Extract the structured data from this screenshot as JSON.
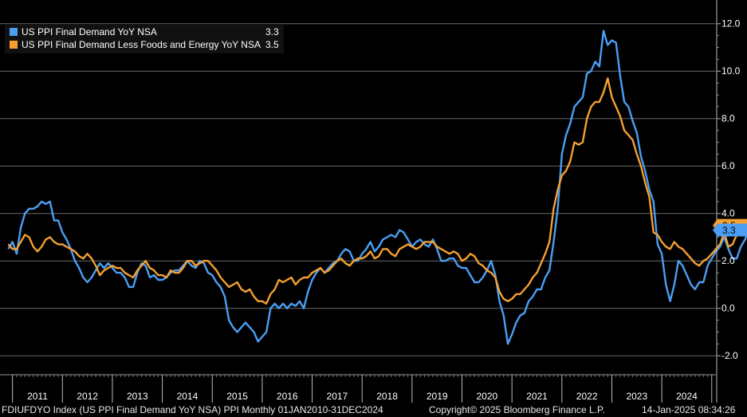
{
  "legend": [
    {
      "name": "US PPI Final Demand YoY NSA",
      "value": "3.3",
      "color": "#4a9ff5"
    },
    {
      "name": "US PPI Final Demand Less Foods and Energy YoY NSA",
      "value": "3.5",
      "color": "#f5a030"
    }
  ],
  "footer": {
    "left": "FDIUFDYO Index (US PPI Final Demand YoY NSA) PPI  Monthly 01JAN2010-31DEC2024",
    "center": "Copyright© 2025 Bloomberg Finance L.P.",
    "right": "14-Jan-2025 08:34:26"
  },
  "chart_data": {
    "type": "line",
    "x_start": "2010-12",
    "x_frequency": "monthly",
    "xlim": [
      "2010-10",
      "2025-02"
    ],
    "ylim": [
      -2.8,
      13.0
    ],
    "y_ticks": [
      "-2.0",
      "0.0",
      "2.0",
      "4.0",
      "6.0",
      "8.0",
      "10.0",
      "12.0"
    ],
    "x_tick_labels": [
      "2011",
      "2012",
      "2013",
      "2014",
      "2015",
      "2016",
      "2017",
      "2018",
      "2019",
      "2020",
      "2021",
      "2022",
      "2023",
      "2024"
    ],
    "grid": true,
    "axis_position": "right",
    "last_value_badges": [
      {
        "label": "3.3",
        "series": 0
      },
      {
        "label": "3.5",
        "series": 1
      }
    ],
    "series": [
      {
        "name": "US PPI Final Demand YoY NSA",
        "color": "#4a9ff5",
        "values": [
          2.5,
          2.8,
          2.3,
          3.4,
          4.0,
          4.2,
          4.2,
          4.3,
          4.5,
          4.4,
          4.5,
          3.7,
          3.7,
          3.2,
          2.9,
          2.5,
          2.0,
          1.7,
          1.3,
          1.1,
          1.3,
          1.6,
          1.9,
          1.7,
          1.9,
          1.7,
          1.5,
          1.5,
          1.3,
          0.9,
          0.9,
          1.5,
          1.9,
          1.8,
          1.3,
          1.4,
          1.2,
          1.2,
          1.3,
          1.5,
          1.6,
          1.6,
          1.8,
          2.0,
          1.8,
          1.7,
          2.0,
          1.9,
          1.5,
          1.4,
          1.1,
          0.9,
          0.5,
          -0.5,
          -0.8,
          -1.0,
          -0.8,
          -0.6,
          -0.8,
          -1.0,
          -1.4,
          -1.2,
          -1.0,
          0.0,
          0.2,
          0.0,
          0.2,
          0.0,
          0.2,
          0.1,
          0.3,
          0.0,
          0.7,
          1.2,
          1.5,
          1.7,
          1.5,
          1.7,
          1.9,
          2.0,
          2.3,
          2.5,
          2.4,
          2.0,
          2.0,
          2.3,
          2.5,
          2.8,
          2.4,
          2.6,
          2.9,
          3.0,
          3.1,
          3.0,
          3.3,
          3.2,
          2.9,
          2.6,
          2.8,
          2.9,
          2.7,
          2.6,
          2.9,
          2.5,
          2.0,
          2.0,
          2.1,
          2.1,
          1.8,
          1.7,
          1.7,
          1.4,
          1.1,
          1.1,
          1.3,
          1.6,
          2.0,
          1.4,
          0.3,
          -0.3,
          -1.5,
          -1.1,
          -0.6,
          -0.3,
          -0.2,
          0.3,
          0.5,
          0.8,
          0.8,
          1.3,
          1.6,
          2.8,
          4.2,
          6.5,
          7.3,
          7.8,
          8.5,
          8.7,
          8.9,
          9.9,
          10.0,
          10.4,
          10.2,
          11.7,
          11.1,
          11.3,
          11.2,
          9.8,
          8.7,
          8.5,
          7.9,
          7.4,
          6.4,
          5.8,
          5.0,
          4.5,
          2.7,
          2.3,
          1.0,
          0.3,
          1.0,
          2.0,
          1.8,
          1.4,
          1.0,
          0.8,
          1.1,
          1.1,
          1.8,
          2.1,
          2.4,
          2.6,
          3.0,
          2.5,
          2.1,
          2.1,
          2.6,
          2.9,
          3.3
        ]
      },
      {
        "name": "US PPI Final Demand Less Foods and Energy YoY NSA",
        "color": "#f5a030",
        "values": [
          2.7,
          2.5,
          2.5,
          2.8,
          3.1,
          3.0,
          2.6,
          2.4,
          2.6,
          2.9,
          3.0,
          2.8,
          2.7,
          2.7,
          2.6,
          2.5,
          2.4,
          2.2,
          2.1,
          2.3,
          2.1,
          1.8,
          1.4,
          1.6,
          1.7,
          1.8,
          1.7,
          1.7,
          1.5,
          1.4,
          1.3,
          1.6,
          1.8,
          2.0,
          1.7,
          1.6,
          1.4,
          1.4,
          1.3,
          1.6,
          1.5,
          1.5,
          1.7,
          2.0,
          2.0,
          1.8,
          1.9,
          2.0,
          2.0,
          1.8,
          1.6,
          1.3,
          1.1,
          0.9,
          1.0,
          1.1,
          0.8,
          0.7,
          0.8,
          0.5,
          0.3,
          0.3,
          0.2,
          0.6,
          0.8,
          1.2,
          1.1,
          1.2,
          1.3,
          1.0,
          1.2,
          1.3,
          1.3,
          1.5,
          1.6,
          1.7,
          1.5,
          1.6,
          1.8,
          2.0,
          2.1,
          1.9,
          1.8,
          2.0,
          2.1,
          2.1,
          2.2,
          2.4,
          2.1,
          2.2,
          2.5,
          2.5,
          2.3,
          2.2,
          2.5,
          2.6,
          2.7,
          2.6,
          2.5,
          2.6,
          2.8,
          2.8,
          2.8,
          2.6,
          2.5,
          2.4,
          2.3,
          2.4,
          2.3,
          2.0,
          2.1,
          2.3,
          2.2,
          1.9,
          1.8,
          1.6,
          1.5,
          1.3,
          0.7,
          0.4,
          0.3,
          0.4,
          0.6,
          0.6,
          0.8,
          1.0,
          1.3,
          1.5,
          1.9,
          2.3,
          2.8,
          4.2,
          5.0,
          5.6,
          5.8,
          6.2,
          7.0,
          6.9,
          7.0,
          8.0,
          8.5,
          8.7,
          8.7,
          9.1,
          9.7,
          8.9,
          8.5,
          8.1,
          7.5,
          7.3,
          7.1,
          6.5,
          6.0,
          5.3,
          4.7,
          3.2,
          3.1,
          2.8,
          2.6,
          2.5,
          2.8,
          2.6,
          2.5,
          2.3,
          2.1,
          1.9,
          1.8,
          2.0,
          2.1,
          2.3,
          2.5,
          2.7,
          3.2,
          2.6,
          2.7,
          3.1,
          3.3,
          3.5,
          3.5
        ]
      }
    ]
  }
}
